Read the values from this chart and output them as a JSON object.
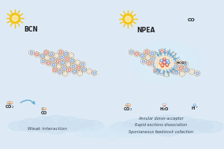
{
  "fig_bg": "#ddeaf5",
  "sun_color": "#f5c518",
  "arrow_color": "#6aaed6",
  "cloud_color": "#c5ddf0",
  "donor_color": "#d47070",
  "acceptor_color": "#7098d4",
  "bond_color": "#a07840",
  "node_white": "#e8e0d0",
  "text_color": "#222222",
  "left_label": "BCN",
  "right_label": "NPEA",
  "left_sublabel": "Weak interaction",
  "right_lines": [
    "Annular donor-acceptor",
    "Rapid excitons dissociation",
    "Spontaneous feedstock collection"
  ],
  "glow_color": "#f0e8c0",
  "glow_color2": "#c8e0f8"
}
